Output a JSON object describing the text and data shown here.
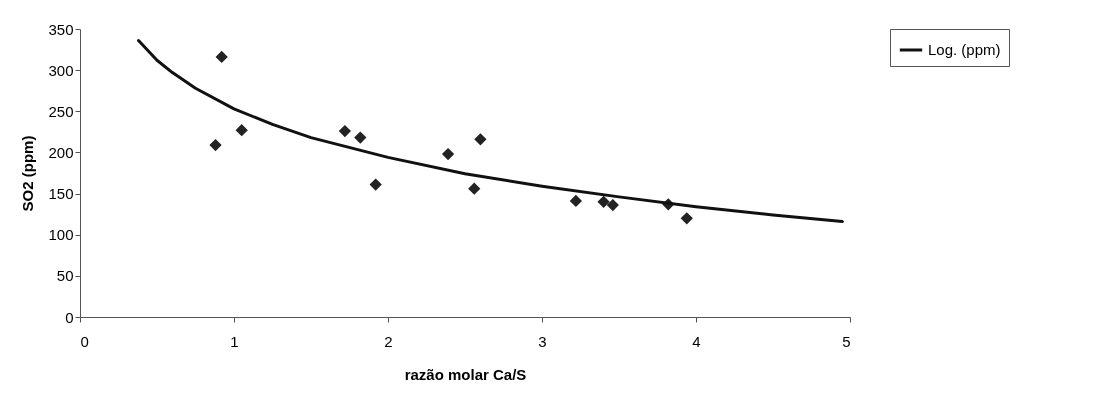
{
  "chart_data": {
    "type": "scatter",
    "xlabel": "razão molar Ca/S",
    "ylabel": "SO2 (ppm)",
    "xlim": [
      0,
      5
    ],
    "xticks": [
      0,
      1,
      2,
      3,
      4,
      5
    ],
    "ylim": [
      0,
      350
    ],
    "yticks": [
      0,
      50,
      100,
      150,
      200,
      250,
      300,
      350
    ],
    "grid": false,
    "legend": "right",
    "series": [
      {
        "marker": "diamond",
        "color": "#222222",
        "x": [
          0.88,
          0.92,
          1.05,
          1.72,
          1.82,
          1.92,
          2.39,
          2.56,
          2.6,
          3.22,
          3.4,
          3.46,
          3.82,
          3.94
        ],
        "values": [
          209,
          316,
          227,
          226,
          218,
          161,
          198,
          156,
          216,
          141,
          140,
          136,
          137,
          120
        ]
      },
      {
        "type": "line",
        "name": "Log. (ppm)",
        "color": "#111111",
        "x": [
          0.38,
          0.5,
          0.6,
          0.75,
          1,
          1.25,
          1.5,
          2,
          2.5,
          3,
          3.5,
          4,
          4.5,
          4.95
        ],
        "values": [
          336,
          312,
          297,
          278,
          253,
          234,
          218,
          194,
          174,
          159,
          146,
          134,
          124,
          116
        ]
      }
    ]
  }
}
